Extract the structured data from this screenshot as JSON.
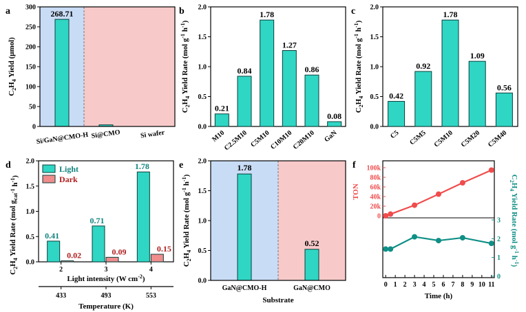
{
  "colors": {
    "bar_fill": "#2fd6c4",
    "bar_stroke": "#0a3d3a",
    "dark_bar_fill": "#f08c8c",
    "bg_blue": "#c9dcf5",
    "bg_pink": "#f7c9c9",
    "light_label": "#10837c",
    "dark_label": "#b01c1c",
    "ton_color": "#f04c4c",
    "rate_color": "#0f8f86"
  },
  "chart_data": [
    {
      "panel": "a",
      "type": "bar",
      "categories": [
        "Si/GaN@CMO-H",
        "Si@CMO",
        "Si wafer"
      ],
      "values": [
        268.71,
        4,
        0
      ],
      "data_labels": [
        "268.71",
        "",
        ""
      ],
      "ylabel_parts": [
        "C",
        "2",
        "H",
        "4",
        " Yield (μmol)"
      ],
      "ylim": [
        0,
        300
      ],
      "yticks": [
        "0",
        "50",
        "100",
        "150",
        "200",
        "250",
        "300"
      ]
    },
    {
      "panel": "b",
      "type": "bar",
      "categories": [
        "M10",
        "C2.5M10",
        "C5M10",
        "C10M10",
        "C20M10",
        "GaN"
      ],
      "values": [
        0.21,
        0.84,
        1.78,
        1.27,
        0.86,
        0.08
      ],
      "data_labels": [
        "0.21",
        "0.84",
        "1.78",
        "1.27",
        "0.86",
        "0.08"
      ],
      "ylabel_parts": [
        "C",
        "2",
        "H",
        "4",
        " Yield Rate (mol g",
        "-1",
        " h",
        "-1",
        ")"
      ],
      "ylim": [
        0,
        2.0
      ],
      "yticks": [
        "0.0",
        "0.5",
        "1.0",
        "1.5",
        "2.0"
      ]
    },
    {
      "panel": "c",
      "type": "bar",
      "categories": [
        "C5",
        "C5M5",
        "C5M10",
        "C5M20",
        "C5M40"
      ],
      "values": [
        0.42,
        0.92,
        1.78,
        1.09,
        0.56
      ],
      "data_labels": [
        "0.42",
        "0.92",
        "1.78",
        "1.09",
        "0.56"
      ],
      "ylabel_parts": [
        "C",
        "2",
        "H",
        "4",
        " Yield Rate (mol g",
        "-1",
        " h",
        "-1",
        ")"
      ],
      "ylim": [
        0,
        2.0
      ],
      "yticks": [
        "0.0",
        "0.5",
        "1.0",
        "1.5",
        "2.0"
      ]
    },
    {
      "panel": "d",
      "type": "bar",
      "categories": [
        "2",
        "3",
        "4"
      ],
      "series": [
        {
          "name": "Light",
          "values": [
            0.41,
            0.71,
            1.78
          ],
          "data_labels": [
            "0.41",
            "0.71",
            "1.78"
          ]
        },
        {
          "name": "Dark",
          "values": [
            0.02,
            0.09,
            0.15
          ],
          "data_labels": [
            "0.02",
            "0.09",
            "0.15"
          ]
        }
      ],
      "xlabel_parts": [
        "Light intensity (W cm",
        "-2",
        ")"
      ],
      "secondary_x": {
        "values": [
          "433",
          "493",
          "553"
        ],
        "label": "Temperature (K)"
      },
      "ylabel_parts": [
        "C",
        "2",
        "H",
        "4",
        " Yield Rate (mol g",
        "cat",
        "-1",
        " h",
        "-1",
        ")"
      ],
      "ylim": [
        0,
        2.0
      ],
      "yticks": [
        "0.0",
        "0.5",
        "1.0",
        "1.5",
        "2.0"
      ],
      "legend_position": "top-left"
    },
    {
      "panel": "e",
      "type": "bar",
      "categories": [
        "GaN@CMO-H",
        "GaN@CMO"
      ],
      "values": [
        1.78,
        0.52
      ],
      "data_labels": [
        "1.78",
        "0.52"
      ],
      "xlabel": "Substrate",
      "ylabel_parts": [
        "C",
        "2",
        "H",
        "4",
        " Yield Rate (mol g",
        "-1",
        " h",
        "-1",
        ")"
      ],
      "ylim": [
        0,
        2.0
      ],
      "yticks": [
        "0.0",
        "0.5",
        "1.0",
        "1.5",
        "2.0"
      ]
    },
    {
      "panel": "f",
      "type": "line",
      "x": [
        0,
        0.5,
        3,
        5.5,
        8,
        11
      ],
      "xlabel": "Time (h)",
      "xticks": [
        "0",
        "1",
        "2",
        "3",
        "4",
        "5",
        "6",
        "7",
        "8",
        "9",
        "10",
        "11"
      ],
      "series": [
        {
          "name": "TON",
          "values": [
            0,
            3500,
            22000,
            45000,
            68500,
            95000
          ]
        },
        {
          "name": "Rate",
          "values": [
            1.45,
            1.45,
            2.1,
            1.9,
            2.05,
            1.75
          ]
        }
      ],
      "top_ylabel": "TON",
      "top_ylim": [
        0,
        100000
      ],
      "top_yticks": [
        "0",
        "20k",
        "40k",
        "60k",
        "80k",
        "100k"
      ],
      "bottom_ylabel_parts": [
        "C",
        "2",
        "H",
        "4",
        " Yield Rate (mol g",
        "-1",
        " h",
        "-1",
        ")"
      ],
      "bottom_ylim": [
        0,
        3
      ],
      "bottom_yticks": [
        "0",
        "1",
        "2",
        "3"
      ]
    }
  ]
}
